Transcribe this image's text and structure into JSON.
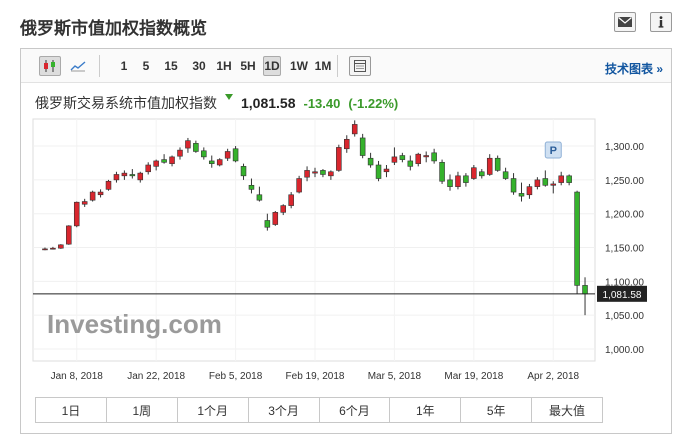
{
  "page": {
    "title": "俄罗斯市值加权指数概览"
  },
  "icons": {
    "mail": "mail-icon",
    "info": "info-icon"
  },
  "toolbar": {
    "intervals": [
      "1",
      "5",
      "15",
      "30",
      "1H",
      "5H",
      "1D",
      "1W",
      "1M"
    ],
    "active_interval": "1D",
    "tech_chart_label": "技术图表 »"
  },
  "instrument": {
    "name": "俄罗斯交易系统市值加权指数",
    "price": "1,081.58",
    "change": "-13.40",
    "change_pct": "(-1.22%)"
  },
  "chart_data": {
    "type": "candlestick",
    "ylim": [
      1000,
      1340
    ],
    "yticks": [
      "1,300.00",
      "1,250.00",
      "1,200.00",
      "1,150.00",
      "1,100.00",
      "1,050.00",
      "1,000.00"
    ],
    "xticks": [
      "Jan 8, 2018",
      "Jan 22, 2018",
      "Feb 5, 2018",
      "Feb 19, 2018",
      "Mar 5, 2018",
      "Mar 19, 2018",
      "Apr 2, 2018"
    ],
    "last_price_label": "1,081.58",
    "last_price": 1081.58,
    "annotation": "P",
    "watermark": "Investing.com",
    "colors": {
      "up": "#d9262e",
      "down": "#35b22c"
    },
    "candles": [
      [
        1148,
        1150,
        1146,
        1148
      ],
      [
        1148,
        1151,
        1147,
        1149
      ],
      [
        1149,
        1155,
        1148,
        1154
      ],
      [
        1155,
        1183,
        1154,
        1182
      ],
      [
        1182,
        1218,
        1180,
        1217
      ],
      [
        1214,
        1222,
        1210,
        1218
      ],
      [
        1220,
        1234,
        1218,
        1232
      ],
      [
        1228,
        1236,
        1224,
        1232
      ],
      [
        1236,
        1250,
        1234,
        1248
      ],
      [
        1250,
        1262,
        1246,
        1258
      ],
      [
        1256,
        1264,
        1250,
        1260
      ],
      [
        1258,
        1266,
        1252,
        1256
      ],
      [
        1250,
        1262,
        1246,
        1260
      ],
      [
        1262,
        1276,
        1258,
        1272
      ],
      [
        1270,
        1280,
        1264,
        1278
      ],
      [
        1280,
        1288,
        1274,
        1276
      ],
      [
        1274,
        1286,
        1270,
        1284
      ],
      [
        1285,
        1298,
        1280,
        1294
      ],
      [
        1297,
        1312,
        1290,
        1308
      ],
      [
        1304,
        1308,
        1290,
        1292
      ],
      [
        1293,
        1298,
        1280,
        1284
      ],
      [
        1278,
        1286,
        1268,
        1274
      ],
      [
        1272,
        1282,
        1270,
        1280
      ],
      [
        1282,
        1296,
        1278,
        1292
      ],
      [
        1296,
        1300,
        1276,
        1278
      ],
      [
        1270,
        1274,
        1250,
        1256
      ],
      [
        1242,
        1252,
        1230,
        1236
      ],
      [
        1228,
        1240,
        1218,
        1220
      ],
      [
        1190,
        1200,
        1175,
        1180
      ],
      [
        1184,
        1204,
        1182,
        1202
      ],
      [
        1202,
        1214,
        1198,
        1212
      ],
      [
        1212,
        1232,
        1208,
        1228
      ],
      [
        1232,
        1256,
        1230,
        1252
      ],
      [
        1254,
        1270,
        1248,
        1264
      ],
      [
        1260,
        1268,
        1254,
        1262
      ],
      [
        1264,
        1266,
        1254,
        1258
      ],
      [
        1256,
        1264,
        1250,
        1262
      ],
      [
        1264,
        1302,
        1262,
        1298
      ],
      [
        1296,
        1316,
        1290,
        1310
      ],
      [
        1318,
        1338,
        1314,
        1332
      ],
      [
        1312,
        1318,
        1282,
        1286
      ],
      [
        1282,
        1290,
        1268,
        1272
      ],
      [
        1272,
        1278,
        1248,
        1252
      ],
      [
        1262,
        1272,
        1254,
        1266
      ],
      [
        1276,
        1298,
        1272,
        1284
      ],
      [
        1286,
        1290,
        1276,
        1280
      ],
      [
        1278,
        1286,
        1264,
        1270
      ],
      [
        1274,
        1290,
        1270,
        1288
      ],
      [
        1284,
        1292,
        1276,
        1286
      ],
      [
        1290,
        1296,
        1274,
        1278
      ],
      [
        1276,
        1280,
        1244,
        1248
      ],
      [
        1250,
        1258,
        1234,
        1240
      ],
      [
        1240,
        1262,
        1236,
        1256
      ],
      [
        1256,
        1260,
        1240,
        1246
      ],
      [
        1252,
        1272,
        1250,
        1268
      ],
      [
        1262,
        1266,
        1252,
        1256
      ],
      [
        1258,
        1288,
        1256,
        1282
      ],
      [
        1282,
        1286,
        1262,
        1264
      ],
      [
        1262,
        1268,
        1250,
        1252
      ],
      [
        1252,
        1260,
        1228,
        1232
      ],
      [
        1230,
        1246,
        1218,
        1226
      ],
      [
        1228,
        1244,
        1222,
        1240
      ],
      [
        1240,
        1254,
        1236,
        1250
      ],
      [
        1252,
        1264,
        1240,
        1242
      ],
      [
        1242,
        1248,
        1230,
        1244
      ],
      [
        1246,
        1262,
        1242,
        1256
      ],
      [
        1256,
        1258,
        1242,
        1246
      ],
      [
        1232,
        1234,
        1082,
        1094
      ],
      [
        1094,
        1106,
        1050,
        1081.58
      ]
    ]
  },
  "periods": [
    "1日",
    "1周",
    "1个月",
    "3个月",
    "6个月",
    "1年",
    "5年",
    "最大值"
  ]
}
